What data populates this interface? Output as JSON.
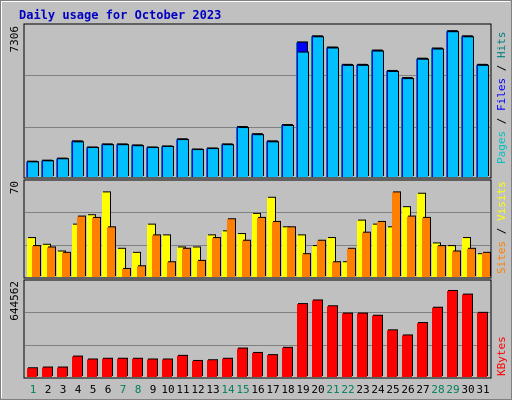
{
  "chart_data": {
    "type": "bar",
    "title": "Daily usage for October 2023",
    "categories": [
      "1",
      "2",
      "3",
      "4",
      "5",
      "6",
      "7",
      "8",
      "9",
      "10",
      "11",
      "12",
      "13",
      "14",
      "15",
      "16",
      "17",
      "18",
      "19",
      "20",
      "21",
      "22",
      "23",
      "24",
      "25",
      "26",
      "27",
      "28",
      "29",
      "30",
      "31"
    ],
    "weekend_days": [
      "1",
      "7",
      "8",
      "14",
      "15",
      "21",
      "22",
      "28",
      "29"
    ],
    "panels": [
      {
        "name": "pages-files-hits",
        "max_label": "7306",
        "ylim": [
          0,
          7306
        ],
        "legend": [
          {
            "text": "Pages",
            "color": "#00c0c0"
          },
          {
            "text": " / ",
            "color": "#000000"
          },
          {
            "text": "Files",
            "color": "#0000ff"
          },
          {
            "text": " / ",
            "color": "#000000"
          },
          {
            "text": "Hits",
            "color": "#008080"
          }
        ],
        "series": [
          {
            "name": "Hits",
            "color": "#008080",
            "values": [
              750,
              800,
              900,
              1750,
              1450,
              1600,
              1600,
              1550,
              1450,
              1500,
              1850,
              1350,
              1400,
              1600,
              2450,
              2100,
              1750,
              2550,
              6600,
              6900,
              6350,
              5500,
              5500,
              6200,
              5200,
              4850,
              5800,
              6300,
              7150,
              6900,
              5500
            ]
          },
          {
            "name": "Files",
            "color": "#0000ff",
            "values": [
              740,
              790,
              890,
              1740,
              1440,
              1590,
              1590,
              1540,
              1440,
              1490,
              1840,
              1340,
              1390,
              1590,
              2440,
              2090,
              1740,
              2540,
              6590,
              6890,
              6340,
              5490,
              5490,
              6190,
              5190,
              4840,
              5790,
              6290,
              7140,
              6890,
              5490
            ]
          },
          {
            "name": "Pages",
            "color": "#00c0ff",
            "values": [
              720,
              770,
              870,
              1700,
              1420,
              1560,
              1560,
              1510,
              1420,
              1470,
              1810,
              1320,
              1370,
              1560,
              2400,
              2050,
              1700,
              2500,
              6100,
              6850,
              6300,
              5450,
              5450,
              6150,
              5150,
              4800,
              5750,
              6250,
              7100,
              6850,
              5450
            ]
          }
        ]
      },
      {
        "name": "visits-sites",
        "max_label": "70",
        "ylim": [
          0,
          70
        ],
        "legend": [
          {
            "text": "Sites",
            "color": "#ff8000"
          },
          {
            "text": " / ",
            "color": "#000000"
          },
          {
            "text": "Visits",
            "color": "#ffff00"
          }
        ],
        "series": [
          {
            "name": "Visits",
            "color": "#ffff00",
            "values": [
              29,
              24,
              19,
              39,
              46,
              63,
              21,
              18,
              39,
              31,
              22,
              22,
              31,
              34,
              32,
              47,
              59,
              37,
              31,
              23,
              29,
              11,
              42,
              39,
              37,
              52,
              62,
              25,
              23,
              29,
              17
            ]
          },
          {
            "name": "Sites",
            "color": "#ff8000",
            "values": [
              23,
              22,
              18,
              45,
              44,
              37,
              6,
              8,
              31,
              11,
              21,
              12,
              29,
              43,
              27,
              44,
              41,
              37,
              17,
              27,
              11,
              21,
              33,
              41,
              63,
              45,
              44,
              23,
              19,
              21,
              18
            ]
          }
        ]
      },
      {
        "name": "kbytes",
        "max_label": "644562",
        "ylim": [
          0,
          644562
        ],
        "legend": [
          {
            "text": "KBytes",
            "color": "#ff0000"
          }
        ],
        "series": [
          {
            "name": "KBytes",
            "color": "#ff0000",
            "values": [
              60000,
              65000,
              65000,
              140000,
              120000,
              125000,
              125000,
              125000,
              120000,
              120000,
              145000,
              110000,
              115000,
              125000,
              195000,
              165000,
              150000,
              200000,
              500000,
              525000,
              485000,
              435000,
              435000,
              420000,
              320000,
              285000,
              370000,
              475000,
              590000,
              565000,
              440000
            ]
          }
        ]
      }
    ]
  }
}
